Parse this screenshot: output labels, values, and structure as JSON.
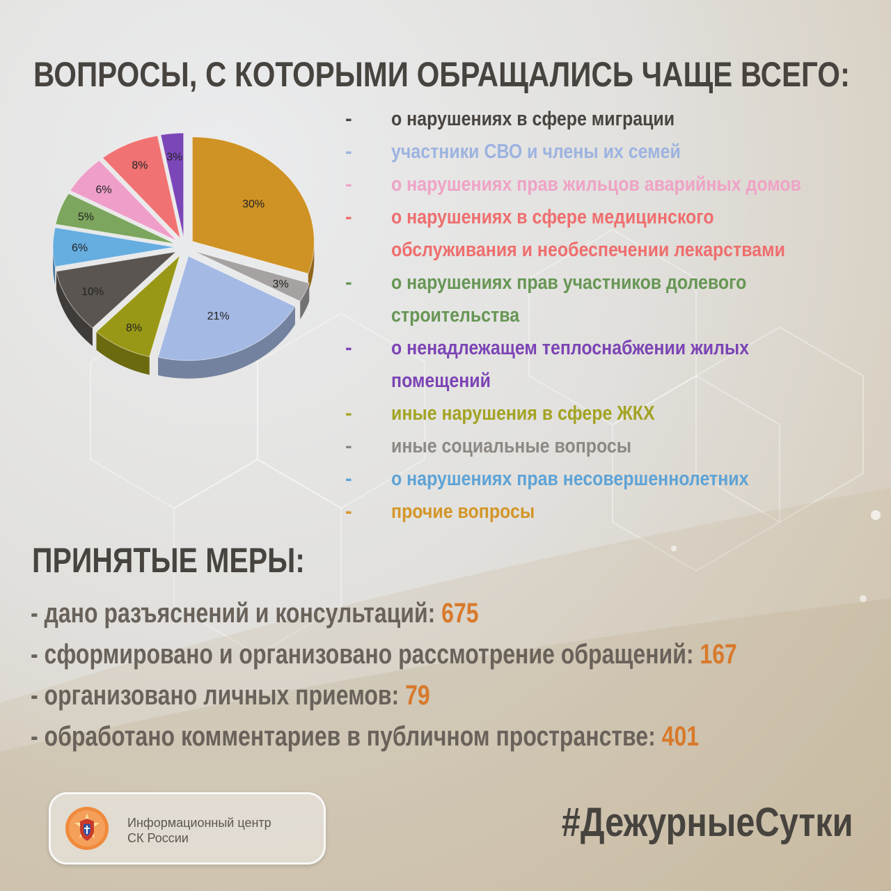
{
  "title": "ВОПРОСЫ, С КОТОРЫМИ ОБРАЩАЛИСЬ ЧАЩЕ ВСЕГО:",
  "chart_data": {
    "type": "pie",
    "title": "",
    "slices": [
      {
        "label": "прочие вопросы",
        "value": 30,
        "percent_label": "30%",
        "color": "#cf9224"
      },
      {
        "label": "иные социальные вопросы",
        "value": 3,
        "percent_label": "3%",
        "color": "#a5a2a1"
      },
      {
        "label": "участники СВО и члены их семей",
        "value": 21,
        "percent_label": "21%",
        "color": "#a4b9e3"
      },
      {
        "label": "иные нарушения в сфере ЖКХ",
        "value": 8,
        "percent_label": "8%",
        "color": "#999816"
      },
      {
        "label": "(без подписи)",
        "value": 10,
        "percent_label": "10%",
        "color": "#5a5550"
      },
      {
        "label": "о нарушениях прав несовершеннолетних",
        "value": 6,
        "percent_label": "6%",
        "color": "#66ade0"
      },
      {
        "label": "о нарушениях прав участников долевого строительства",
        "value": 5,
        "percent_label": "5%",
        "color": "#7ca65d"
      },
      {
        "label": "о нарушениях прав жильцов аварийных домов",
        "value": 6,
        "percent_label": "6%",
        "color": "#ef9ec9"
      },
      {
        "label": "о нарушениях в сфере медицинского обслуживания и необеспечении лекарствами",
        "value": 8,
        "percent_label": "8%",
        "color": "#f07272"
      },
      {
        "label": "о ненадлежащем теплоснабжении жилых помещений",
        "value": 3,
        "percent_label": "3%",
        "color": "#7b46b8"
      }
    ]
  },
  "legend": [
    {
      "dash": "-",
      "text": "о нарушениях в сфере миграции",
      "color": "#49443f"
    },
    {
      "dash": "-",
      "text": "участники СВО и члены их семей",
      "color": "#9db3e0"
    },
    {
      "dash": "-",
      "text": "о нарушениях прав жильцов аварийных домов",
      "color": "#efa3c6"
    },
    {
      "dash": "-",
      "text": "о нарушениях в сфере медицинского обслуживания и необеспечении лекарствами",
      "color": "#ef6e6e"
    },
    {
      "dash": "-",
      "text": "о нарушениях прав участников долевого строительства",
      "color": "#679655"
    },
    {
      "dash": "-",
      "text": "о ненадлежащем теплоснабжении жилых помещений",
      "color": "#7c44b5"
    },
    {
      "dash": "-",
      "text": "иные нарушения в сфере ЖКХ",
      "color": "#a3a324"
    },
    {
      "dash": "-",
      "text": "иные социальные вопросы",
      "color": "#8d8883"
    },
    {
      "dash": "-",
      "text": "о нарушениях прав несовершеннолетних",
      "color": "#5ea3d6"
    },
    {
      "dash": "-",
      "text": "прочие вопросы",
      "color": "#d39628"
    }
  ],
  "measures_title": "ПРИНЯТЫЕ МЕРЫ:",
  "measures": [
    {
      "text": "- дано разъяснений и консультаций: ",
      "value": "675"
    },
    {
      "text": "- сформировано и организовано рассмотрение обращений: ",
      "value": "167"
    },
    {
      "text": "- организовано личных приемов: ",
      "value": "79"
    },
    {
      "text": "- обработано комментариев в публичном пространстве: ",
      "value": "401"
    }
  ],
  "logo": {
    "line1": "Информационный центр",
    "line2": "СК России",
    "icon": "sk-russia-emblem-icon"
  },
  "hashtag": "#ДежурныеСутки"
}
